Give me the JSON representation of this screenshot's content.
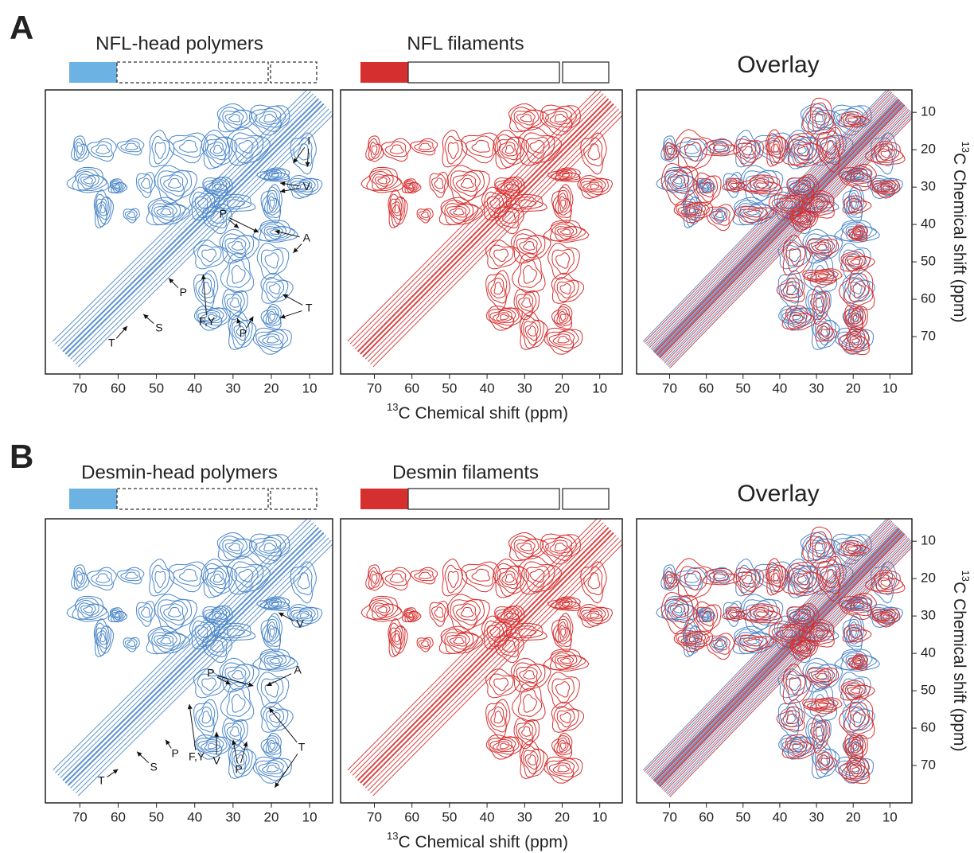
{
  "figure": {
    "rows": [
      {
        "label": "A",
        "x_label": {
          "sup": "13",
          "text": "C Chemical shift (ppm)"
        },
        "y_label": {
          "sup": "13",
          "text": "C Chemical shift (ppm)"
        }
      },
      {
        "label": "B",
        "x_label": {
          "sup": "13",
          "text": "C Chemical shift (ppm)"
        },
        "y_label": {
          "sup": "13",
          "text": "C Chemical shift (ppm)"
        }
      }
    ]
  },
  "chart_data": [
    {
      "type": "contour",
      "title": "NFL-head polymers",
      "colors": [
        "#4a86c8"
      ],
      "xlim": [
        79,
        4
      ],
      "ylim": [
        80,
        4
      ],
      "xticks": [
        70,
        60,
        50,
        40,
        30,
        20,
        10
      ],
      "annotations": [
        {
          "text": "I",
          "x": 10.2,
          "y": 17.8,
          "targets": [
            [
              14.3,
              23.6
            ],
            [
              10.6,
              24.6
            ]
          ]
        },
        {
          "text": "V",
          "x": 10.8,
          "y": 30.0,
          "targets": [
            [
              17.7,
              28.9
            ],
            [
              17.7,
              31.2
            ]
          ]
        },
        {
          "text": "P",
          "x": 32.6,
          "y": 37.4,
          "targets": [
            [
              28.5,
              41
            ],
            [
              23.3,
              42.1
            ]
          ]
        },
        {
          "text": "A",
          "x": 10.8,
          "y": 43.8,
          "targets": [
            [
              19.1,
              41.7
            ],
            [
              14.3,
              47.6
            ]
          ]
        },
        {
          "text": "F,Y",
          "x": 36.8,
          "y": 66.1,
          "targets": [
            [
              37.8,
              53.4
            ]
          ]
        },
        {
          "text": "P",
          "x": 27.4,
          "y": 69.3,
          "targets": [
            [
              28.9,
              65.1
            ],
            [
              24.7,
              64.6
            ]
          ]
        },
        {
          "text": "T",
          "x": 10.2,
          "y": 62.5,
          "targets": [
            [
              17,
              58.7
            ],
            [
              17.7,
              65
            ]
          ]
        },
        {
          "text": "P",
          "x": 43,
          "y": 58.3,
          "targets": [
            [
              46.8,
              54.4
            ]
          ]
        },
        {
          "text": "S",
          "x": 49.3,
          "y": 67.8,
          "targets": [
            [
              53.4,
              64
            ]
          ]
        },
        {
          "text": "T",
          "x": 61.7,
          "y": 71.9,
          "targets": [
            [
              57.6,
              67.2
            ]
          ]
        }
      ]
    },
    {
      "type": "contour",
      "title": "NFL filaments",
      "colors": [
        "#d62f2f"
      ],
      "xlim": [
        79,
        4
      ],
      "ylim": [
        80,
        4
      ],
      "xticks": [
        70,
        60,
        50,
        40,
        30,
        20,
        10
      ]
    },
    {
      "type": "contour",
      "title": "Overlay",
      "colors": [
        "#4a86c8",
        "#d62f2f"
      ],
      "xlim": [
        79,
        4
      ],
      "ylim": [
        80,
        4
      ],
      "xticks": [
        70,
        60,
        50,
        40,
        30,
        20,
        10
      ],
      "yticks": [
        10,
        20,
        30,
        40,
        50,
        60,
        70
      ]
    },
    {
      "type": "contour",
      "title": "Desmin-head polymers",
      "colors": [
        "#4a86c8"
      ],
      "xlim": [
        79,
        4
      ],
      "ylim": [
        80,
        4
      ],
      "xticks": [
        70,
        60,
        50,
        40,
        30,
        20,
        10
      ],
      "annotations": [
        {
          "text": "V",
          "x": 12.5,
          "y": 32.3,
          "targets": [
            [
              18.1,
              29.1
            ]
          ]
        },
        {
          "text": "P",
          "x": 35.8,
          "y": 45.5,
          "targets": [
            [
              30.6,
              48.3
            ],
            [
              24.7,
              48.7
            ]
          ]
        },
        {
          "text": "A",
          "x": 13.1,
          "y": 44.6,
          "targets": [
            [
              21.2,
              48.7
            ]
          ]
        },
        {
          "text": "F,Y",
          "x": 39.5,
          "y": 67.8,
          "targets": [
            [
              41.4,
              53.6
            ]
          ]
        },
        {
          "text": "V",
          "x": 34.3,
          "y": 68.9,
          "targets": [
            [
              34.3,
              61
            ]
          ]
        },
        {
          "text": "P",
          "x": 28.5,
          "y": 71.2,
          "targets": [
            [
              30,
              63.1
            ],
            [
              26.4,
              63.6
            ]
          ]
        },
        {
          "text": "T",
          "x": 12.1,
          "y": 65.3,
          "targets": [
            [
              20.6,
              54.6
            ],
            [
              19.1,
              75.9
            ]
          ]
        },
        {
          "text": "P",
          "x": 45.1,
          "y": 67,
          "targets": [
            [
              47.6,
              63.1
            ]
          ]
        },
        {
          "text": "S",
          "x": 50.7,
          "y": 70.6,
          "targets": [
            [
              55.1,
              66.3
            ]
          ]
        },
        {
          "text": "T",
          "x": 64.4,
          "y": 74.2,
          "targets": [
            [
              60,
              71
            ]
          ]
        }
      ]
    },
    {
      "type": "contour",
      "title": "Desmin filaments",
      "colors": [
        "#d62f2f"
      ],
      "xlim": [
        79,
        4
      ],
      "ylim": [
        80,
        4
      ],
      "xticks": [
        70,
        60,
        50,
        40,
        30,
        20,
        10
      ]
    },
    {
      "type": "contour",
      "title": "Overlay",
      "colors": [
        "#4a86c8",
        "#d62f2f"
      ],
      "xlim": [
        79,
        4
      ],
      "ylim": [
        80,
        4
      ],
      "xticks": [
        70,
        60,
        50,
        40,
        30,
        20,
        10
      ],
      "yticks": [
        10,
        20,
        30,
        40,
        50,
        60,
        70
      ]
    }
  ]
}
